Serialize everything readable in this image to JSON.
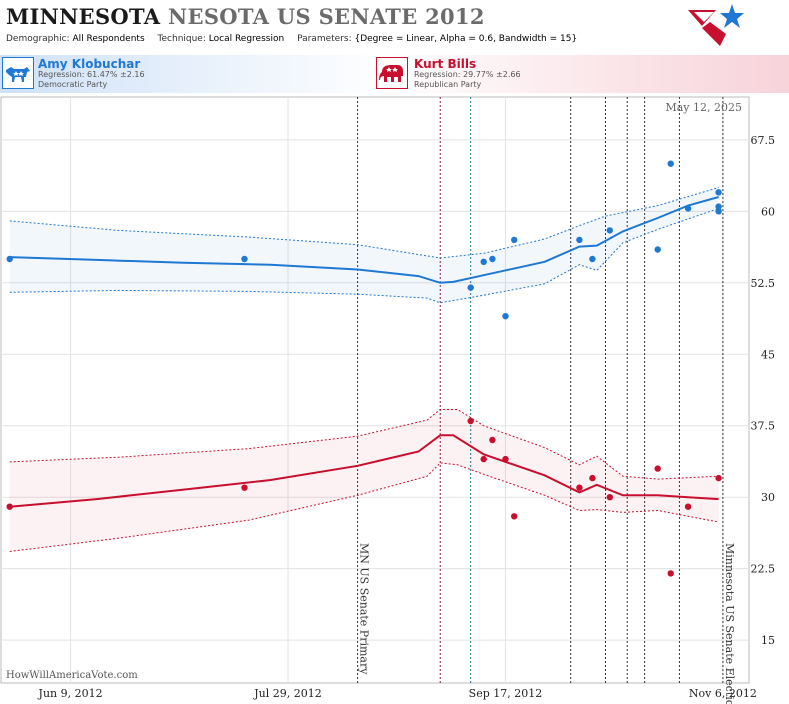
{
  "header": {
    "title_state": "MINNESOTA",
    "title_rest": "NESOTA US SENATE 2012",
    "demographic_label": "Demographic:",
    "demographic_value": "All Respondents",
    "technique_label": "Technique:",
    "technique_value": "Local Regression",
    "parameters_label": "Parameters:",
    "parameters_value": "{Degree = Linear, Alpha = 0.6, Bandwidth = 15}",
    "logo_icon": "star-logo-icon"
  },
  "candidates": [
    {
      "name": "Amy Klobuchar",
      "regression": "Regression: 61.47% ±2.16",
      "party": "Democratic Party",
      "color": "#1f78d1",
      "icon": "donkey-icon"
    },
    {
      "name": "Kurt Bills",
      "regression": "Regression: 29.77% ±2.66",
      "party": "Republican Party",
      "color": "#c8102e",
      "icon": "elephant-icon"
    }
  ],
  "chart_data": {
    "type": "scatter",
    "date_label": "May 12, 2025",
    "watermark": "HowWillAmericaVote.com",
    "x_ticks": [
      "Jun 9, 2012",
      "Jul 29, 2012",
      "Sep 17, 2012",
      "Nov 6, 2012"
    ],
    "y_ticks": [
      15,
      22.5,
      30,
      37.5,
      45,
      52.5,
      60,
      67.5
    ],
    "ylim": [
      10.5,
      72
    ],
    "xlim": [
      "2012-05-24",
      "2012-11-12"
    ],
    "events": [
      {
        "label": "MN US Senate Primary",
        "date": "2012-08-14",
        "color": "#333333"
      },
      {
        "label": "Minnesota US Senate Election",
        "date": "2012-11-06",
        "color": "#333333"
      }
    ],
    "poll_lines": [
      {
        "date": "2012-09-02",
        "color": "#8b1e4a"
      },
      {
        "date": "2012-09-09",
        "color": "#1e7a8b"
      },
      {
        "date": "2012-10-02",
        "color": "#333333"
      },
      {
        "date": "2012-10-10",
        "color": "#333333"
      },
      {
        "date": "2012-10-15",
        "color": "#333333"
      },
      {
        "date": "2012-10-19",
        "color": "#333333"
      },
      {
        "date": "2012-10-27",
        "color": "#333333"
      }
    ],
    "series": [
      {
        "name": "Amy Klobuchar",
        "color": "#1f78d1",
        "points": [
          [
            "2012-05-26",
            55
          ],
          [
            "2012-07-19",
            55
          ],
          [
            "2012-09-09",
            52
          ],
          [
            "2012-09-12",
            54.7
          ],
          [
            "2012-09-14",
            55
          ],
          [
            "2012-09-17",
            49
          ],
          [
            "2012-09-19",
            57
          ],
          [
            "2012-10-04",
            57
          ],
          [
            "2012-10-07",
            55
          ],
          [
            "2012-10-11",
            58
          ],
          [
            "2012-10-22",
            56
          ],
          [
            "2012-10-25",
            65
          ],
          [
            "2012-10-29",
            60.3
          ],
          [
            "2012-11-05",
            62
          ],
          [
            "2012-11-05",
            60.5
          ],
          [
            "2012-11-05",
            60
          ]
        ],
        "trend": [
          [
            "2012-05-26",
            55.2
          ],
          [
            "2012-06-15",
            54.9
          ],
          [
            "2012-07-05",
            54.6
          ],
          [
            "2012-07-25",
            54.4
          ],
          [
            "2012-08-14",
            53.9
          ],
          [
            "2012-08-28",
            53.2
          ],
          [
            "2012-09-02",
            52.5
          ],
          [
            "2012-09-05",
            52.6
          ],
          [
            "2012-09-12",
            53.3
          ],
          [
            "2012-09-26",
            54.7
          ],
          [
            "2012-10-04",
            56.3
          ],
          [
            "2012-10-08",
            56.4
          ],
          [
            "2012-10-14",
            57.9
          ],
          [
            "2012-10-22",
            59.3
          ],
          [
            "2012-10-29",
            60.6
          ],
          [
            "2012-11-05",
            61.5
          ]
        ],
        "upper": [
          [
            "2012-05-26",
            59
          ],
          [
            "2012-06-20",
            58
          ],
          [
            "2012-07-20",
            57.3
          ],
          [
            "2012-08-14",
            56.5
          ],
          [
            "2012-09-02",
            55.1
          ],
          [
            "2012-09-12",
            55.6
          ],
          [
            "2012-09-26",
            57.1
          ],
          [
            "2012-10-04",
            58.5
          ],
          [
            "2012-10-10",
            59.5
          ],
          [
            "2012-10-22",
            60.6
          ],
          [
            "2012-11-05",
            62.5
          ]
        ],
        "lower": [
          [
            "2012-05-26",
            51.5
          ],
          [
            "2012-06-20",
            51.7
          ],
          [
            "2012-07-20",
            51.6
          ],
          [
            "2012-08-14",
            51.3
          ],
          [
            "2012-08-30",
            50.9
          ],
          [
            "2012-09-02",
            50.4
          ],
          [
            "2012-09-12",
            51.2
          ],
          [
            "2012-09-26",
            52.4
          ],
          [
            "2012-10-04",
            54.4
          ],
          [
            "2012-10-08",
            53.8
          ],
          [
            "2012-10-14",
            56.7
          ],
          [
            "2012-10-22",
            58.1
          ],
          [
            "2012-11-05",
            60.3
          ]
        ]
      },
      {
        "name": "Kurt Bills",
        "color": "#c8102e",
        "points": [
          [
            "2012-05-26",
            29
          ],
          [
            "2012-07-19",
            31
          ],
          [
            "2012-09-09",
            38
          ],
          [
            "2012-09-12",
            34
          ],
          [
            "2012-09-14",
            36
          ],
          [
            "2012-09-17",
            34
          ],
          [
            "2012-09-19",
            28
          ],
          [
            "2012-10-04",
            31
          ],
          [
            "2012-10-07",
            32
          ],
          [
            "2012-10-11",
            30
          ],
          [
            "2012-10-22",
            33
          ],
          [
            "2012-10-25",
            22
          ],
          [
            "2012-10-29",
            29
          ],
          [
            "2012-11-05",
            32
          ]
        ],
        "trend": [
          [
            "2012-05-26",
            29
          ],
          [
            "2012-06-15",
            29.8
          ],
          [
            "2012-07-05",
            30.8
          ],
          [
            "2012-07-25",
            31.8
          ],
          [
            "2012-08-14",
            33.3
          ],
          [
            "2012-08-28",
            34.8
          ],
          [
            "2012-09-02",
            36.5
          ],
          [
            "2012-09-05",
            36.5
          ],
          [
            "2012-09-12",
            34.5
          ],
          [
            "2012-09-26",
            32.3
          ],
          [
            "2012-10-04",
            30.5
          ],
          [
            "2012-10-08",
            31.3
          ],
          [
            "2012-10-14",
            30.2
          ],
          [
            "2012-10-22",
            30.2
          ],
          [
            "2012-10-29",
            30
          ],
          [
            "2012-11-05",
            29.8
          ]
        ],
        "upper": [
          [
            "2012-05-26",
            33.7
          ],
          [
            "2012-06-20",
            34.2
          ],
          [
            "2012-07-20",
            35.1
          ],
          [
            "2012-08-14",
            36.4
          ],
          [
            "2012-08-30",
            38.1
          ],
          [
            "2012-09-02",
            39.2
          ],
          [
            "2012-09-06",
            39.2
          ],
          [
            "2012-09-12",
            37.5
          ],
          [
            "2012-09-26",
            35.2
          ],
          [
            "2012-10-04",
            33.4
          ],
          [
            "2012-10-08",
            34.3
          ],
          [
            "2012-10-14",
            32.2
          ],
          [
            "2012-10-22",
            31.9
          ],
          [
            "2012-11-05",
            32.2
          ]
        ],
        "lower": [
          [
            "2012-05-26",
            24.3
          ],
          [
            "2012-06-20",
            25.7
          ],
          [
            "2012-07-20",
            27.6
          ],
          [
            "2012-08-14",
            30.2
          ],
          [
            "2012-08-30",
            32.2
          ],
          [
            "2012-09-02",
            33.6
          ],
          [
            "2012-09-06",
            33.4
          ],
          [
            "2012-09-12",
            32.4
          ],
          [
            "2012-09-26",
            30.2
          ],
          [
            "2012-10-04",
            28.6
          ],
          [
            "2012-10-08",
            28.7
          ],
          [
            "2012-10-14",
            28.4
          ],
          [
            "2012-10-22",
            28.6
          ],
          [
            "2012-11-05",
            27.4
          ]
        ]
      }
    ]
  }
}
